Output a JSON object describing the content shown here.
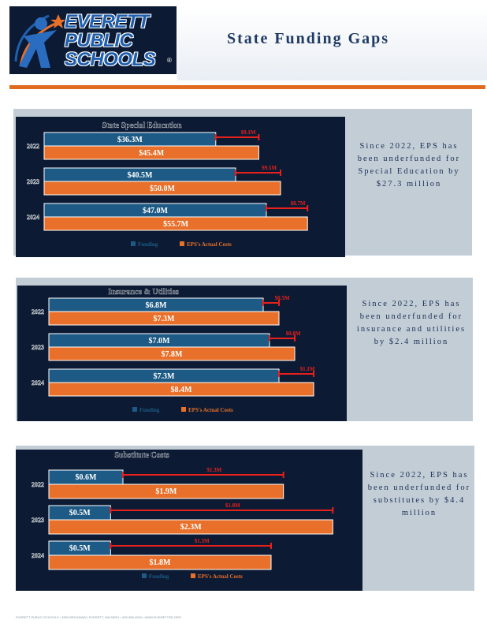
{
  "header": {
    "title": "State Funding Gaps"
  },
  "logo": {
    "line1": "EVERETT",
    "line2": "PUBLIC",
    "line3": "SCHOOLS",
    "reg": "®"
  },
  "colors": {
    "funding": "#1d5a85",
    "costs": "#e8702a",
    "gap": "#e8201c",
    "panel": "#c3cdd6",
    "chart_bg": "#0c1b33",
    "accent": "#e06b20"
  },
  "panels": [
    {
      "note": "Since 2022, EPS has been underfunded for Special Education by $27.3 million"
    },
    {
      "note": "Since 2022, EPS has been underfunded for insurance and utilities by $2.4 million"
    },
    {
      "note": "Since 2022, EPS has been underfunded for substitutes by $4.4 million"
    }
  ],
  "chart_data": [
    {
      "type": "bar",
      "title": "State Special Education",
      "categories": [
        "2022",
        "2023",
        "2024"
      ],
      "series": [
        {
          "name": "Funding",
          "values": [
            36.3,
            40.5,
            47.0
          ],
          "labels": [
            "$36.3M",
            "$40.5M",
            "$47.0M"
          ]
        },
        {
          "name": "EPS's Actual Costs",
          "values": [
            45.4,
            50.0,
            55.7
          ],
          "labels": [
            "$45.4M",
            "$50.0M",
            "$55.7M"
          ]
        }
      ],
      "gap_labels": [
        "$9.1M",
        "$9.5M",
        "$8.7M"
      ],
      "xlim": [
        0,
        60
      ]
    },
    {
      "type": "bar",
      "title": "Insurance & Utilities",
      "categories": [
        "2022",
        "2023",
        "2024"
      ],
      "series": [
        {
          "name": "Funding",
          "values": [
            6.8,
            7.0,
            7.3
          ],
          "labels": [
            "$6.8M",
            "$7.0M",
            "$7.3M"
          ]
        },
        {
          "name": "EPS's Actual Costs",
          "values": [
            7.3,
            7.8,
            8.4
          ],
          "labels": [
            "$7.3M",
            "$7.8M",
            "$8.4M"
          ]
        }
      ],
      "gap_labels": [
        "$0.5M",
        "$0.8M",
        "$1.1M"
      ],
      "xlim": [
        0,
        9
      ]
    },
    {
      "type": "bar",
      "title": "Substitute Costs",
      "categories": [
        "2022",
        "2023",
        "2024"
      ],
      "series": [
        {
          "name": "Funding",
          "values": [
            0.6,
            0.5,
            0.5
          ],
          "labels": [
            "$0.6M",
            "$0.5M",
            "$0.5M"
          ]
        },
        {
          "name": "EPS's Actual Costs",
          "values": [
            1.9,
            2.3,
            1.8
          ],
          "labels": [
            "$1.9M",
            "$2.3M",
            "$1.8M"
          ]
        }
      ],
      "gap_labels": [
        "$1.3M",
        "$1.8M",
        "$1.3M"
      ],
      "xlim": [
        0,
        2.4
      ]
    }
  ],
  "footer": {
    "text": "EVERETT PUBLIC SCHOOLS • 3900 BROADWAY, EVERETT, WA 98201 • 425-385-4000 • WWW.EVERETTSD.ORG"
  }
}
